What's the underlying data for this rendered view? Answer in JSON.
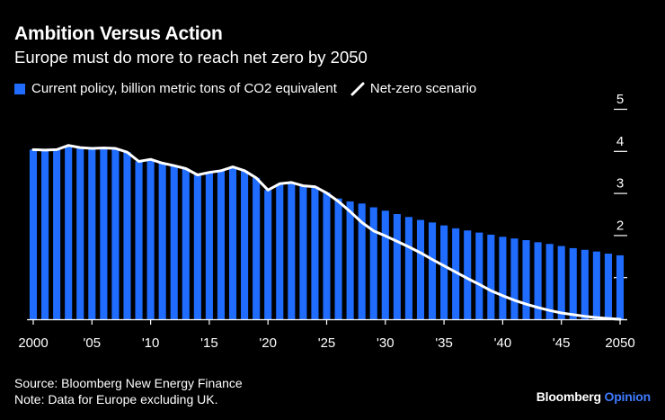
{
  "title": "Ambition Versus Action",
  "subtitle": "Europe must do more to reach net zero by 2050",
  "legend": {
    "bars_label": "Current policy, billion metric tons of CO2 equivalent",
    "line_label": "Net-zero scenario"
  },
  "footer": {
    "source": "Source: Bloomberg New Energy Finance",
    "note": "Note: Data for Europe excluding UK."
  },
  "brand": {
    "name": "Bloomberg",
    "suffix": "Opinion"
  },
  "colors": {
    "bar": "#1f6cff",
    "line": "#ffffff",
    "background": "#000000"
  },
  "chart_data": {
    "type": "bar",
    "title": "Ambition Versus Action",
    "subtitle": "Europe must do more to reach net zero by 2050",
    "xlabel": "",
    "ylabel": "Billion metric tons of CO2 equivalent",
    "ylim": [
      0,
      5
    ],
    "yticks": [
      0,
      1,
      2,
      3,
      4,
      5
    ],
    "xtick_values": [
      2000,
      2005,
      2010,
      2015,
      2020,
      2025,
      2030,
      2035,
      2040,
      2045,
      2050
    ],
    "xtick_labels": [
      "2000",
      "'05",
      "'10",
      "'15",
      "'20",
      "'25",
      "'30",
      "'35",
      "'40",
      "'45",
      "2050"
    ],
    "categories": [
      2000,
      2001,
      2002,
      2003,
      2004,
      2005,
      2006,
      2007,
      2008,
      2009,
      2010,
      2011,
      2012,
      2013,
      2014,
      2015,
      2016,
      2017,
      2018,
      2019,
      2020,
      2021,
      2022,
      2023,
      2024,
      2025,
      2026,
      2027,
      2028,
      2029,
      2030,
      2031,
      2032,
      2033,
      2034,
      2035,
      2036,
      2037,
      2038,
      2039,
      2040,
      2041,
      2042,
      2043,
      2044,
      2045,
      2046,
      2047,
      2048,
      2049,
      2050
    ],
    "series": [
      {
        "name": "Current policy, billion metric tons of CO2 equivalent",
        "type": "bar",
        "values": [
          4.03,
          4.02,
          4.03,
          4.13,
          4.08,
          4.06,
          4.07,
          4.06,
          3.97,
          3.75,
          3.8,
          3.71,
          3.65,
          3.58,
          3.43,
          3.49,
          3.53,
          3.62,
          3.53,
          3.36,
          3.07,
          3.22,
          3.25,
          3.17,
          3.15,
          3.01,
          2.87,
          2.8,
          2.75,
          2.66,
          2.58,
          2.5,
          2.43,
          2.36,
          2.3,
          2.23,
          2.16,
          2.11,
          2.06,
          2.01,
          1.96,
          1.92,
          1.88,
          1.83,
          1.79,
          1.74,
          1.69,
          1.65,
          1.61,
          1.56,
          1.52
        ]
      },
      {
        "name": "Net-zero scenario",
        "type": "line",
        "values": [
          4.03,
          4.02,
          4.03,
          4.13,
          4.08,
          4.06,
          4.07,
          4.06,
          3.97,
          3.75,
          3.8,
          3.71,
          3.65,
          3.58,
          3.43,
          3.49,
          3.53,
          3.62,
          3.53,
          3.36,
          3.07,
          3.22,
          3.25,
          3.17,
          3.15,
          3.0,
          2.8,
          2.56,
          2.3,
          2.1,
          1.98,
          1.85,
          1.72,
          1.58,
          1.42,
          1.27,
          1.12,
          0.97,
          0.83,
          0.68,
          0.56,
          0.45,
          0.36,
          0.28,
          0.21,
          0.15,
          0.11,
          0.07,
          0.04,
          0.02,
          0.0
        ]
      }
    ]
  }
}
